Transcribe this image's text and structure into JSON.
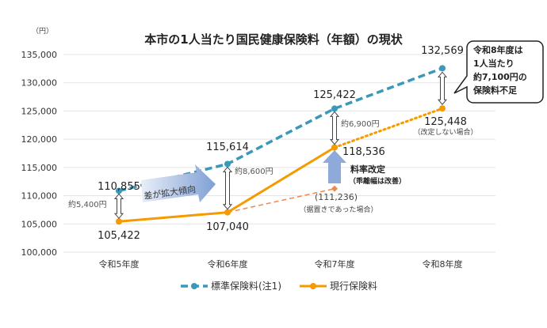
{
  "chart_data": {
    "type": "line",
    "title": "本市の1人当たり国民健康保険料（年額）の現状",
    "ylabel": "（円）",
    "ylim": [
      100000,
      135000
    ],
    "yticks": [
      100000,
      105000,
      110000,
      115000,
      120000,
      125000,
      130000,
      135000
    ],
    "ytick_labels": [
      "100,000",
      "105,000",
      "110,000",
      "115,000",
      "120,000",
      "125,000",
      "130,000",
      "135,000"
    ],
    "categories": [
      "令和5年度",
      "令和6年度",
      "令和7年度",
      "令和8年度"
    ],
    "grid": true,
    "legend_position": "bottom",
    "series": [
      {
        "name": "標準保険料(注1)",
        "values": [
          110855,
          115614,
          125422,
          132569
        ],
        "labels": [
          "110,855",
          "115,614",
          "125,422",
          "132,569"
        ],
        "color": "#3b98b8",
        "style": "dashed"
      },
      {
        "name": "現行保険料",
        "values": [
          105422,
          107040,
          118536,
          null
        ],
        "labels": [
          "105,422",
          "107,040",
          "118,536",
          ""
        ],
        "color": "#f59a00",
        "style": "solid"
      },
      {
        "name": "改定しない場合",
        "values": [
          null,
          null,
          118536,
          125448
        ],
        "labels": [
          "",
          "",
          "",
          "125,448"
        ],
        "sublabel": "（改定しない場合）",
        "color": "#f59a00",
        "style": "dotted"
      },
      {
        "name": "据置きであった場合",
        "values": [
          null,
          107040,
          111236,
          null
        ],
        "labels": [
          "",
          "",
          "(111,236)",
          ""
        ],
        "sublabel": "（据置きであった場合）",
        "color": "#f0884a",
        "style": "dashed-thin"
      }
    ],
    "annotations": {
      "gap5": "約5,400円",
      "gap6": "約8,600円",
      "gap7": "約6,900円",
      "trend": "差が拡大傾向",
      "revision_1": "料率改定",
      "revision_2": "（乖離幅は改善）",
      "callout": [
        "令和8年度は",
        "1人当たり",
        "約7,100円の",
        "保険料不足"
      ]
    }
  }
}
